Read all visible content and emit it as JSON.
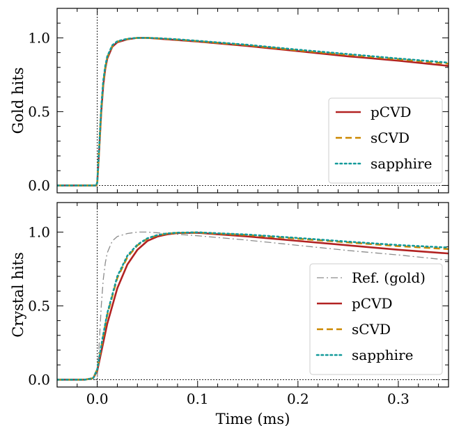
{
  "chart_data": [
    {
      "type": "line",
      "ylabel": "Gold hits",
      "xlabel": "",
      "xlim": [
        -0.04,
        0.35
      ],
      "ylim": [
        -0.05,
        1.2
      ],
      "xticks": [
        0.0,
        0.1,
        0.2,
        0.3
      ],
      "yticks": [
        0.0,
        0.5,
        1.0
      ],
      "ytick_labels": [
        "0.0",
        "0.5",
        "1.0"
      ],
      "grid": false,
      "reference_lines": {
        "x": 0.0,
        "y": 0.0
      },
      "legend_position": "lower-right",
      "series": [
        {
          "name": "pCVD",
          "color": "#b22222",
          "style": "solid",
          "x": [
            -0.04,
            -0.001,
            0.0,
            0.002,
            0.004,
            0.006,
            0.008,
            0.01,
            0.015,
            0.02,
            0.03,
            0.04,
            0.05,
            0.06,
            0.08,
            0.1,
            0.15,
            0.2,
            0.25,
            0.3,
            0.35
          ],
          "y": [
            0.0,
            0.0,
            0.02,
            0.25,
            0.5,
            0.68,
            0.79,
            0.86,
            0.94,
            0.97,
            0.99,
            1.0,
            1.0,
            0.995,
            0.985,
            0.975,
            0.945,
            0.91,
            0.875,
            0.845,
            0.81
          ]
        },
        {
          "name": "sCVD",
          "color": "#cc8800",
          "style": "dashed",
          "x": [
            -0.04,
            -0.001,
            0.0,
            0.002,
            0.004,
            0.006,
            0.008,
            0.01,
            0.015,
            0.02,
            0.03,
            0.04,
            0.05,
            0.06,
            0.08,
            0.1,
            0.15,
            0.2,
            0.25,
            0.3,
            0.35
          ],
          "y": [
            0.0,
            0.0,
            0.02,
            0.26,
            0.52,
            0.7,
            0.8,
            0.87,
            0.945,
            0.975,
            0.992,
            1.0,
            1.0,
            0.997,
            0.988,
            0.978,
            0.95,
            0.915,
            0.885,
            0.855,
            0.825
          ]
        },
        {
          "name": "sapphire",
          "color": "#139a9a",
          "style": "dotted",
          "x": [
            -0.04,
            -0.001,
            0.0,
            0.002,
            0.004,
            0.006,
            0.008,
            0.01,
            0.015,
            0.02,
            0.03,
            0.04,
            0.05,
            0.06,
            0.08,
            0.1,
            0.15,
            0.2,
            0.25,
            0.3,
            0.35
          ],
          "y": [
            0.0,
            0.0,
            0.02,
            0.27,
            0.53,
            0.71,
            0.81,
            0.875,
            0.95,
            0.977,
            0.994,
            1.0,
            1.0,
            0.998,
            0.99,
            0.98,
            0.953,
            0.92,
            0.89,
            0.86,
            0.832
          ]
        }
      ]
    },
    {
      "type": "line",
      "ylabel": "Crystal hits",
      "xlabel": "Time (ms)",
      "xlim": [
        -0.04,
        0.35
      ],
      "ylim": [
        -0.05,
        1.2
      ],
      "xticks": [
        0.0,
        0.1,
        0.2,
        0.3
      ],
      "xtick_labels": [
        "0.0",
        "0.1",
        "0.2",
        "0.3"
      ],
      "yticks": [
        0.0,
        0.5,
        1.0
      ],
      "ytick_labels": [
        "0.0",
        "0.5",
        "1.0"
      ],
      "grid": false,
      "reference_lines": {
        "x": 0.0,
        "y": 0.0
      },
      "legend_position": "lower-right",
      "series": [
        {
          "name": "Ref. (gold)",
          "color": "#8c8c8c",
          "style": "dashdot",
          "x": [
            -0.04,
            -0.001,
            0.0,
            0.002,
            0.004,
            0.006,
            0.008,
            0.01,
            0.015,
            0.02,
            0.03,
            0.04,
            0.05,
            0.06,
            0.08,
            0.1,
            0.15,
            0.2,
            0.25,
            0.3,
            0.35
          ],
          "y": [
            0.0,
            0.0,
            0.02,
            0.25,
            0.5,
            0.68,
            0.79,
            0.86,
            0.94,
            0.97,
            0.99,
            1.0,
            1.0,
            0.995,
            0.985,
            0.975,
            0.945,
            0.91,
            0.875,
            0.845,
            0.81
          ]
        },
        {
          "name": "pCVD",
          "color": "#b22222",
          "style": "solid",
          "x": [
            -0.04,
            -0.012,
            -0.004,
            0.0,
            0.005,
            0.01,
            0.02,
            0.03,
            0.04,
            0.05,
            0.06,
            0.07,
            0.08,
            0.1,
            0.15,
            0.2,
            0.25,
            0.3,
            0.35
          ],
          "y": [
            0.0,
            0.0,
            0.01,
            0.06,
            0.22,
            0.38,
            0.62,
            0.78,
            0.88,
            0.94,
            0.97,
            0.985,
            0.993,
            0.995,
            0.97,
            0.94,
            0.91,
            0.88,
            0.855
          ]
        },
        {
          "name": "sCVD",
          "color": "#cc8800",
          "style": "dashed",
          "x": [
            -0.04,
            -0.012,
            -0.004,
            0.0,
            0.005,
            0.01,
            0.02,
            0.03,
            0.04,
            0.05,
            0.06,
            0.07,
            0.08,
            0.1,
            0.15,
            0.2,
            0.25,
            0.3,
            0.35
          ],
          "y": [
            0.0,
            0.0,
            0.01,
            0.07,
            0.26,
            0.44,
            0.69,
            0.83,
            0.91,
            0.955,
            0.978,
            0.99,
            0.995,
            0.997,
            0.98,
            0.955,
            0.93,
            0.905,
            0.885
          ]
        },
        {
          "name": "sapphire",
          "color": "#139a9a",
          "style": "dotted",
          "x": [
            -0.04,
            -0.012,
            -0.004,
            0.0,
            0.005,
            0.01,
            0.02,
            0.03,
            0.04,
            0.05,
            0.06,
            0.07,
            0.08,
            0.1,
            0.15,
            0.2,
            0.25,
            0.3,
            0.35
          ],
          "y": [
            0.0,
            0.0,
            0.01,
            0.07,
            0.27,
            0.45,
            0.7,
            0.84,
            0.915,
            0.958,
            0.98,
            0.991,
            0.996,
            0.998,
            0.983,
            0.96,
            0.935,
            0.912,
            0.895
          ]
        }
      ]
    }
  ]
}
